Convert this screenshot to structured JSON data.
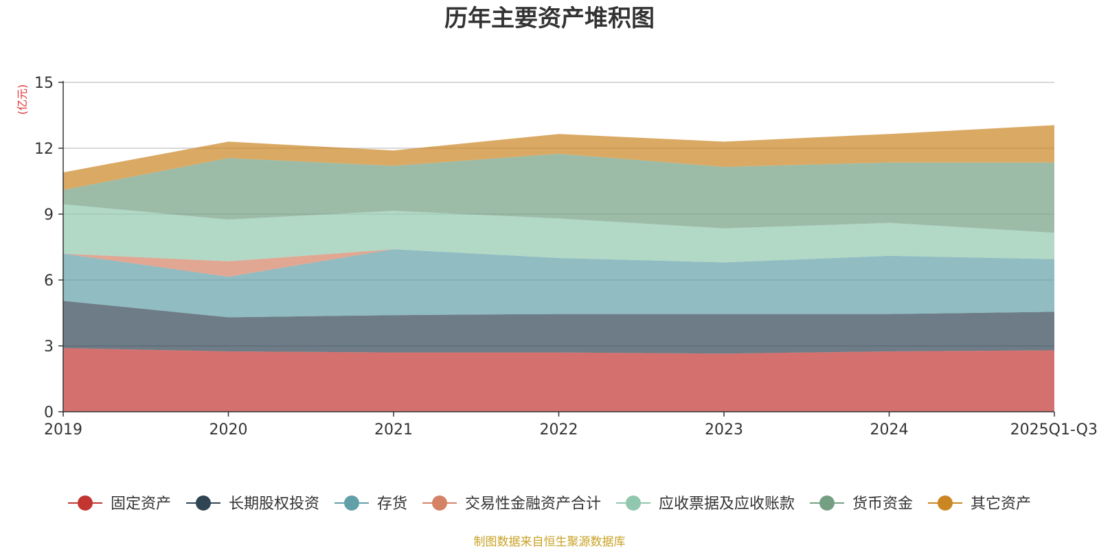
{
  "chart_data": {
    "type": "area",
    "stacked": true,
    "title": "历年主要资产堆积图",
    "unit_label": "(亿元)",
    "source_note": "制图数据来自恒生聚源数据库",
    "categories": [
      "2019",
      "2020",
      "2021",
      "2022",
      "2023",
      "2024",
      "2025Q1-Q3"
    ],
    "ylim": [
      0,
      15
    ],
    "yticks": [
      "0",
      "3",
      "6",
      "9",
      "12",
      "15"
    ],
    "grid": true,
    "legend_position": "bottom",
    "series": [
      {
        "name": "固定资产",
        "color": "#c23531",
        "values": [
          2.9,
          2.75,
          2.7,
          2.7,
          2.65,
          2.75,
          2.8
        ]
      },
      {
        "name": "长期股权投资",
        "color": "#2f4554",
        "values": [
          2.15,
          1.55,
          1.7,
          1.75,
          1.8,
          1.7,
          1.75
        ]
      },
      {
        "name": "存货",
        "color": "#61a0a8",
        "values": [
          2.15,
          1.85,
          3.0,
          2.55,
          2.35,
          2.65,
          2.4
        ]
      },
      {
        "name": "交易性金融资产合计",
        "color": "#d48265",
        "values": [
          0.0,
          0.7,
          0.0,
          0.0,
          0.0,
          0.0,
          0.0
        ]
      },
      {
        "name": "应收票据及应收账款",
        "color": "#91c7ae",
        "values": [
          2.25,
          1.9,
          1.75,
          1.8,
          1.55,
          1.5,
          1.2
        ]
      },
      {
        "name": "货币资金",
        "color": "#749f83",
        "values": [
          0.65,
          2.8,
          2.05,
          2.95,
          2.8,
          2.75,
          3.2
        ]
      },
      {
        "name": "其它资产",
        "color": "#ca8622",
        "values": [
          0.8,
          0.75,
          0.7,
          0.9,
          1.15,
          1.3,
          1.7
        ]
      }
    ]
  }
}
